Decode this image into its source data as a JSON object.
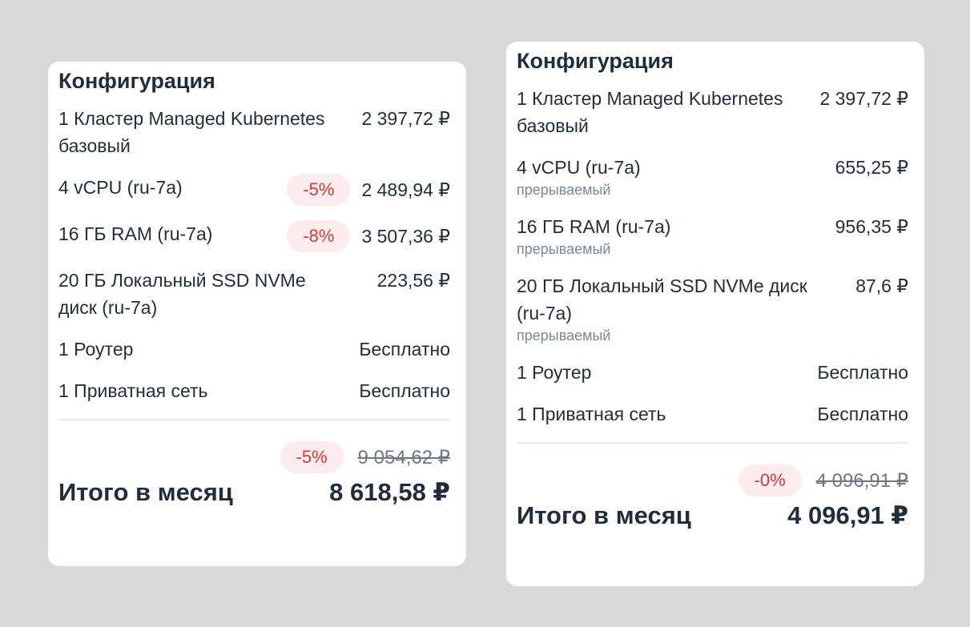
{
  "left_card": {
    "title": "Конфигурация",
    "items": [
      {
        "name": "1 Кластер Managed Kubernetes базовый",
        "price": "2 397,72 ₽"
      },
      {
        "name": "4 vCPU (ru-7a)",
        "badge": "-5%",
        "price": "2 489,94 ₽"
      },
      {
        "name": "16 ГБ RAM (ru-7a)",
        "badge": "-8%",
        "price": "3 507,36 ₽"
      },
      {
        "name": "20 ГБ Локальный SSD NVMe диск (ru-7a)",
        "price": "223,56 ₽"
      },
      {
        "name": "1 Роутер",
        "price": "Бесплатно"
      },
      {
        "name": "1 Приватная сеть",
        "price": "Бесплатно"
      }
    ],
    "discount_badge": "-5%",
    "old_total": "9 054,62 ₽",
    "total_label": "Итого в месяц",
    "total_value": "8 618,58 ₽"
  },
  "right_card": {
    "title": "Конфигурация",
    "items": [
      {
        "name": "1 Кластер Managed Kubernetes базовый",
        "price": "2 397,72 ₽"
      },
      {
        "name": "4 vCPU (ru-7a)",
        "sub": "прерываемый",
        "price": "655,25 ₽"
      },
      {
        "name": "16 ГБ RAM (ru-7a)",
        "sub": "прерываемый",
        "price": "956,35 ₽"
      },
      {
        "name": "20 ГБ Локальный SSD NVMe диск (ru-7a)",
        "sub": "прерываемый",
        "price": "87,6 ₽"
      },
      {
        "name": "1 Роутер",
        "price": "Бесплатно"
      },
      {
        "name": "1 Приватная сеть",
        "price": "Бесплатно"
      }
    ],
    "discount_badge": "-0%",
    "old_total": "4 096,91 ₽",
    "total_label": "Итого в месяц",
    "total_value": "4 096,91 ₽"
  },
  "colors": {
    "background": "#d9d9d9",
    "card": "#ffffff",
    "text": "#1f2d3d",
    "muted": "#7b8794",
    "badge_bg": "#fdeced",
    "badge_text": "#d23a3a"
  }
}
